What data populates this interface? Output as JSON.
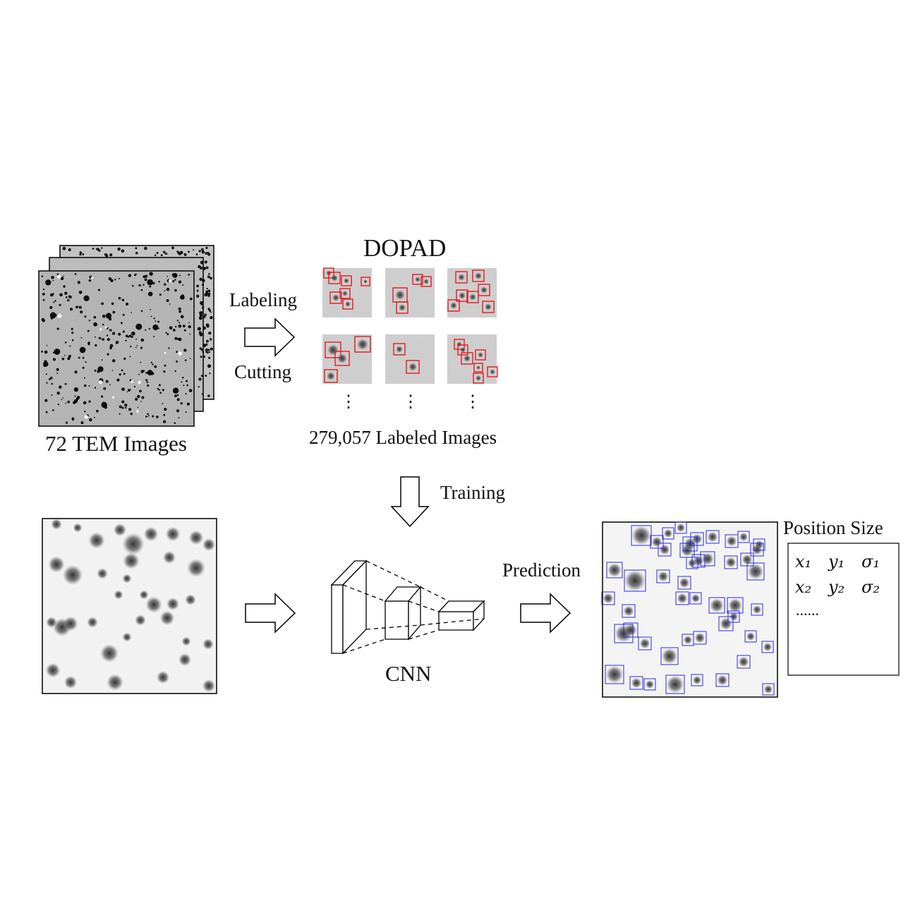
{
  "diagram": {
    "source_stack_label": "72 TEM Images",
    "dataset_title": "DOPAD",
    "step_labeling": "Labeling",
    "step_cutting": "Cutting",
    "dataset_count_label": "279,057 Labeled Images",
    "ellipsis_vertical": "⋮",
    "step_training": "Training",
    "model_label": "CNN",
    "step_prediction": "Prediction",
    "output_header": "Position Size",
    "output_rows": [
      {
        "x": "x₁",
        "y": "y₁",
        "s": "σ₁"
      },
      {
        "x": "x₂",
        "y": "y₂",
        "s": "σ₂"
      }
    ],
    "output_more": "......"
  },
  "colors": {
    "label_box": "#e41a1c",
    "prediction_box": "#2a2ae8",
    "ink": "#111111",
    "tem_background": "#b4b4b4",
    "crop_background": "#cfcfcf",
    "input_background": "#f2f2f2"
  }
}
